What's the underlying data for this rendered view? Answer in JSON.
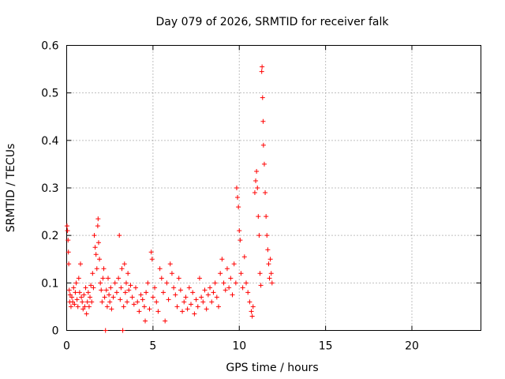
{
  "chart_data": {
    "type": "scatter",
    "title": "Day 079 of 2026, SRMTID for receiver falk",
    "xlabel": "GPS time / hours",
    "ylabel": "SRMTID / TECUs",
    "xlim": [
      0,
      24
    ],
    "ylim": [
      0,
      0.6
    ],
    "xticks": [
      0,
      5,
      10,
      15,
      20
    ],
    "yticks": [
      0,
      0.1,
      0.2,
      0.3,
      0.4,
      0.5,
      0.6
    ],
    "xtick_labels": [
      "0",
      "5",
      "10",
      "15",
      "20"
    ],
    "ytick_labels": [
      "0",
      "0.1",
      "0.2",
      "0.3",
      "0.4",
      "0.5",
      "0.6"
    ],
    "grid": true,
    "marker": "+",
    "color": "#ff0000",
    "series": [
      {
        "name": "SRMTID",
        "points": [
          [
            0.02,
            0.22
          ],
          [
            0.05,
            0.21
          ],
          [
            0.08,
            0.19
          ],
          [
            0.1,
            0.165
          ],
          [
            0.12,
            0.14
          ],
          [
            0.15,
            0.085
          ],
          [
            0.18,
            0.06
          ],
          [
            0.2,
            0.075
          ],
          [
            0.25,
            0.05
          ],
          [
            0.3,
            0.07
          ],
          [
            0.35,
            0.06
          ],
          [
            0.4,
            0.09
          ],
          [
            0.45,
            0.055
          ],
          [
            0.5,
            0.08
          ],
          [
            0.55,
            0.1
          ],
          [
            0.6,
            0.065
          ],
          [
            0.65,
            0.05
          ],
          [
            0.7,
            0.11
          ],
          [
            0.75,
            0.08
          ],
          [
            0.8,
            0.14
          ],
          [
            0.85,
            0.07
          ],
          [
            0.9,
            0.06
          ],
          [
            0.95,
            0.045
          ],
          [
            1.0,
            0.075
          ],
          [
            1.05,
            0.05
          ],
          [
            1.1,
            0.09
          ],
          [
            1.15,
            0.035
          ],
          [
            1.2,
            0.06
          ],
          [
            1.25,
            0.08
          ],
          [
            1.3,
            0.05
          ],
          [
            1.35,
            0.07
          ],
          [
            1.4,
            0.095
          ],
          [
            1.45,
            0.06
          ],
          [
            1.5,
            0.12
          ],
          [
            1.55,
            0.09
          ],
          [
            1.6,
            0.2
          ],
          [
            1.65,
            0.175
          ],
          [
            1.7,
            0.16
          ],
          [
            1.75,
            0.13
          ],
          [
            1.8,
            0.22
          ],
          [
            1.82,
            0.235
          ],
          [
            1.85,
            0.185
          ],
          [
            1.9,
            0.15
          ],
          [
            1.95,
            0.1
          ],
          [
            2.0,
            0.085
          ],
          [
            2.05,
            0.06
          ],
          [
            2.1,
            0.11
          ],
          [
            2.15,
            0.13
          ],
          [
            2.2,
            0.07
          ],
          [
            2.25,
            0.0
          ],
          [
            2.3,
            0.085
          ],
          [
            2.35,
            0.05
          ],
          [
            2.4,
            0.11
          ],
          [
            2.45,
            0.075
          ],
          [
            2.5,
            0.06
          ],
          [
            2.55,
            0.09
          ],
          [
            2.6,
            0.045
          ],
          [
            2.7,
            0.07
          ],
          [
            2.8,
            0.1
          ],
          [
            2.9,
            0.08
          ],
          [
            3.0,
            0.11
          ],
          [
            3.05,
            0.2
          ],
          [
            3.1,
            0.065
          ],
          [
            3.15,
            0.09
          ],
          [
            3.2,
            0.13
          ],
          [
            3.25,
            0.0
          ],
          [
            3.3,
            0.05
          ],
          [
            3.35,
            0.14
          ],
          [
            3.4,
            0.08
          ],
          [
            3.45,
            0.1
          ],
          [
            3.5,
            0.06
          ],
          [
            3.55,
            0.12
          ],
          [
            3.6,
            0.085
          ],
          [
            3.7,
            0.095
          ],
          [
            3.8,
            0.07
          ],
          [
            3.9,
            0.055
          ],
          [
            4.0,
            0.09
          ],
          [
            4.1,
            0.06
          ],
          [
            4.2,
            0.04
          ],
          [
            4.3,
            0.075
          ],
          [
            4.4,
            0.065
          ],
          [
            4.5,
            0.05
          ],
          [
            4.55,
            0.02
          ],
          [
            4.6,
            0.08
          ],
          [
            4.7,
            0.1
          ],
          [
            4.8,
            0.045
          ],
          [
            4.9,
            0.165
          ],
          [
            4.95,
            0.15
          ],
          [
            5.0,
            0.07
          ],
          [
            5.1,
            0.09
          ],
          [
            5.2,
            0.06
          ],
          [
            5.3,
            0.04
          ],
          [
            5.4,
            0.13
          ],
          [
            5.5,
            0.11
          ],
          [
            5.6,
            0.08
          ],
          [
            5.7,
            0.02
          ],
          [
            5.8,
            0.1
          ],
          [
            5.9,
            0.065
          ],
          [
            6.0,
            0.14
          ],
          [
            6.1,
            0.12
          ],
          [
            6.2,
            0.09
          ],
          [
            6.3,
            0.075
          ],
          [
            6.4,
            0.05
          ],
          [
            6.5,
            0.11
          ],
          [
            6.6,
            0.085
          ],
          [
            6.7,
            0.04
          ],
          [
            6.8,
            0.06
          ],
          [
            6.9,
            0.07
          ],
          [
            7.0,
            0.045
          ],
          [
            7.1,
            0.09
          ],
          [
            7.2,
            0.055
          ],
          [
            7.3,
            0.08
          ],
          [
            7.4,
            0.035
          ],
          [
            7.5,
            0.065
          ],
          [
            7.6,
            0.05
          ],
          [
            7.7,
            0.11
          ],
          [
            7.8,
            0.07
          ],
          [
            7.9,
            0.06
          ],
          [
            8.0,
            0.085
          ],
          [
            8.1,
            0.045
          ],
          [
            8.2,
            0.075
          ],
          [
            8.3,
            0.09
          ],
          [
            8.4,
            0.06
          ],
          [
            8.5,
            0.08
          ],
          [
            8.6,
            0.1
          ],
          [
            8.7,
            0.07
          ],
          [
            8.8,
            0.05
          ],
          [
            8.9,
            0.12
          ],
          [
            9.0,
            0.15
          ],
          [
            9.1,
            0.1
          ],
          [
            9.2,
            0.085
          ],
          [
            9.3,
            0.13
          ],
          [
            9.4,
            0.09
          ],
          [
            9.5,
            0.11
          ],
          [
            9.6,
            0.075
          ],
          [
            9.7,
            0.14
          ],
          [
            9.8,
            0.1
          ],
          [
            9.85,
            0.3
          ],
          [
            9.9,
            0.28
          ],
          [
            9.95,
            0.26
          ],
          [
            10.0,
            0.21
          ],
          [
            10.05,
            0.19
          ],
          [
            10.1,
            0.12
          ],
          [
            10.2,
            0.09
          ],
          [
            10.3,
            0.155
          ],
          [
            10.4,
            0.1
          ],
          [
            10.5,
            0.08
          ],
          [
            10.6,
            0.06
          ],
          [
            10.7,
            0.04
          ],
          [
            10.75,
            0.03
          ],
          [
            10.8,
            0.05
          ],
          [
            10.9,
            0.29
          ],
          [
            10.95,
            0.315
          ],
          [
            11.0,
            0.335
          ],
          [
            11.05,
            0.3
          ],
          [
            11.1,
            0.24
          ],
          [
            11.15,
            0.2
          ],
          [
            11.2,
            0.12
          ],
          [
            11.25,
            0.095
          ],
          [
            11.3,
            0.545
          ],
          [
            11.32,
            0.555
          ],
          [
            11.35,
            0.49
          ],
          [
            11.38,
            0.44
          ],
          [
            11.4,
            0.39
          ],
          [
            11.45,
            0.35
          ],
          [
            11.5,
            0.29
          ],
          [
            11.55,
            0.24
          ],
          [
            11.6,
            0.2
          ],
          [
            11.65,
            0.17
          ],
          [
            11.7,
            0.14
          ],
          [
            11.75,
            0.11
          ],
          [
            11.8,
            0.15
          ],
          [
            11.85,
            0.12
          ],
          [
            11.9,
            0.1
          ]
        ]
      }
    ]
  }
}
